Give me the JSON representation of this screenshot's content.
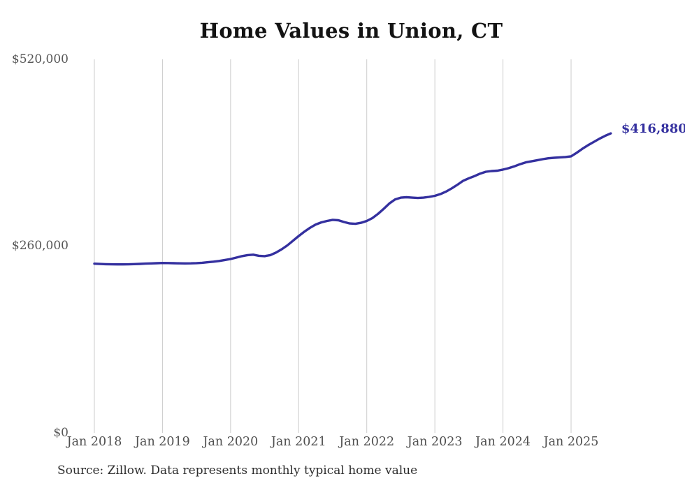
{
  "chart_data": {
    "type": "line",
    "title": "Home Values in Union, CT",
    "source": "Source: Zillow. Data represents monthly typical home value",
    "end_label": "$416,880",
    "latest_value": 416880,
    "x_start": "Jan 2018",
    "x_interval": "monthly",
    "x_tick_labels": [
      "Jan 2018",
      "Jan 2019",
      "Jan 2020",
      "Jan 2021",
      "Jan 2022",
      "Jan 2023",
      "Jan 2024",
      "Jan 2025"
    ],
    "y_ticks": [
      {
        "value": 520000,
        "label": "$520,000"
      },
      {
        "value": 260000,
        "label": "$260,000"
      },
      {
        "value": 0,
        "label": "$0"
      }
    ],
    "ylim": [
      0,
      520000
    ],
    "grid": "vertical-only",
    "legend": "none",
    "line_color": "#34309f",
    "grid_color": "#cccccc",
    "values": [
      235500,
      235100,
      234800,
      234600,
      234500,
      234500,
      234600,
      234900,
      235200,
      235600,
      235900,
      236200,
      236500,
      236400,
      236200,
      236000,
      235900,
      236000,
      236300,
      236800,
      237500,
      238300,
      239300,
      240700,
      242000,
      244000,
      246000,
      247500,
      248000,
      246500,
      246000,
      247500,
      251000,
      255500,
      261000,
      267500,
      274000,
      280000,
      285500,
      290000,
      293000,
      295000,
      296500,
      296000,
      293500,
      291500,
      291000,
      292500,
      295000,
      299000,
      305000,
      312000,
      319500,
      325000,
      327500,
      328000,
      327500,
      327000,
      327500,
      328500,
      330000,
      332500,
      336000,
      340500,
      345500,
      351000,
      354500,
      357500,
      361000,
      363500,
      364500,
      365000,
      366500,
      368500,
      371000,
      374000,
      376500,
      378000,
      379500,
      381000,
      382300,
      383000,
      383500,
      384000,
      385000,
      390000,
      395500,
      400500,
      405000,
      409500,
      413500,
      416880
    ]
  }
}
